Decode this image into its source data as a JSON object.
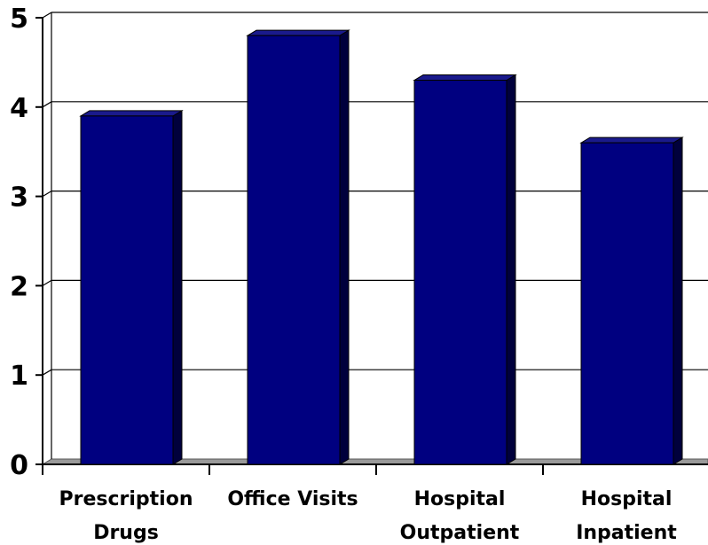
{
  "chart_data": {
    "type": "bar",
    "categories": [
      [
        "Prescription",
        "Drugs"
      ],
      [
        "Office Visits"
      ],
      [
        "Hospital",
        "Outpatient"
      ],
      [
        "Hospital",
        "Inpatient"
      ]
    ],
    "values": [
      3.9,
      4.8,
      4.3,
      3.6
    ],
    "yticks": [
      "0",
      "1",
      "2",
      "3",
      "4",
      "5"
    ],
    "ylim": [
      0,
      5
    ],
    "grid": true,
    "three_d": true,
    "colors": {
      "bar_front": "#000080",
      "bar_side": "#00003c",
      "bar_top": "#1a1a8c",
      "floor": "#9a9a9a",
      "grid": "#000000",
      "axis": "#000000"
    }
  }
}
